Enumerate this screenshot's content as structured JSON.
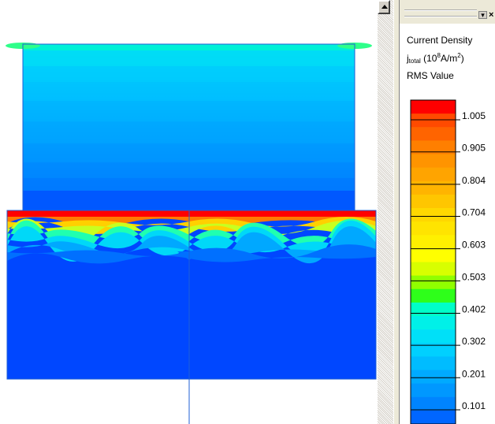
{
  "legend": {
    "title": "Current Density",
    "quantity_symbol": "j",
    "quantity_sub": "total",
    "unit_prefix": " (10",
    "unit_exp": "8",
    "unit_suffix_a": "A/m",
    "unit_exp2": "2",
    "unit_close": ")",
    "mode": "RMS Value"
  },
  "chart_data": {
    "type": "heatmap",
    "colorbar": {
      "ticks": [
        "1.005",
        "0.905",
        "0.804",
        "0.704",
        "0.603",
        "0.503",
        "0.402",
        "0.302",
        "0.201",
        "0.101"
      ],
      "tick_values": [
        1.005,
        0.905,
        0.804,
        0.704,
        0.603,
        0.503,
        0.402,
        0.302,
        0.201,
        0.101
      ],
      "band_colors": [
        "#ff0000",
        "#ff4a00",
        "#ff6400",
        "#ff7f00",
        "#ff9400",
        "#ffa400",
        "#ffb400",
        "#ffc600",
        "#ffd800",
        "#ffe400",
        "#fff000",
        "#ffff00",
        "#d8ff00",
        "#90ff00",
        "#2eff1a",
        "#00ffc8",
        "#00f0e8",
        "#00e0f8",
        "#00d0ff",
        "#00bcff",
        "#00aaff",
        "#0098ff",
        "#0084ff",
        "#0066ff"
      ]
    }
  },
  "plot_colors": {
    "outline": "#1f5fd6",
    "deep_blue": "#0047ff"
  }
}
